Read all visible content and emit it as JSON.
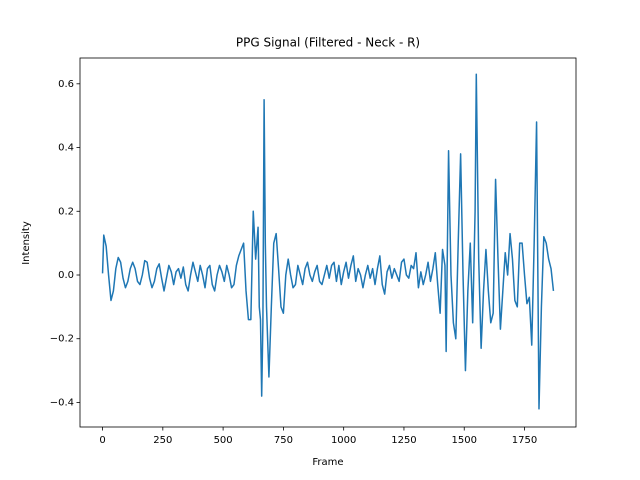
{
  "chart_data": {
    "type": "line",
    "title": "PPG Signal (Filtered - Neck - R)",
    "xlabel": "Frame",
    "ylabel": "Intensity",
    "color": "#1f77b4",
    "xlim": [
      -93.5,
      1963.5
    ],
    "ylim": [
      -0.477,
      0.681
    ],
    "xticks": [
      0,
      250,
      500,
      750,
      1000,
      1250,
      1500,
      1750
    ],
    "yticks": [
      {
        "value": -0.4,
        "label": "−0.4"
      },
      {
        "value": -0.2,
        "label": "−0.2"
      },
      {
        "value": 0.0,
        "label": "0.0"
      },
      0.2,
      0.4,
      0.6
    ],
    "x": [
      0,
      5,
      15,
      25,
      35,
      45,
      55,
      65,
      75,
      85,
      95,
      105,
      115,
      125,
      135,
      145,
      155,
      165,
      175,
      185,
      195,
      205,
      215,
      225,
      235,
      245,
      255,
      265,
      275,
      285,
      295,
      305,
      315,
      325,
      335,
      345,
      355,
      365,
      375,
      385,
      395,
      405,
      415,
      425,
      435,
      445,
      455,
      465,
      475,
      485,
      495,
      505,
      515,
      525,
      535,
      545,
      555,
      565,
      575,
      585,
      595,
      605,
      615,
      625,
      635,
      645,
      650,
      655,
      660,
      665,
      670,
      675,
      680,
      690,
      700,
      710,
      720,
      730,
      740,
      750,
      760,
      770,
      780,
      790,
      800,
      810,
      820,
      830,
      840,
      850,
      860,
      870,
      880,
      890,
      900,
      910,
      920,
      930,
      940,
      950,
      960,
      970,
      980,
      990,
      1000,
      1010,
      1020,
      1030,
      1040,
      1050,
      1060,
      1070,
      1080,
      1090,
      1100,
      1110,
      1120,
      1130,
      1140,
      1150,
      1160,
      1170,
      1180,
      1190,
      1200,
      1210,
      1220,
      1230,
      1240,
      1250,
      1260,
      1270,
      1280,
      1290,
      1300,
      1310,
      1320,
      1330,
      1340,
      1350,
      1360,
      1370,
      1380,
      1390,
      1400,
      1410,
      1420,
      1425,
      1435,
      1445,
      1455,
      1465,
      1475,
      1485,
      1495,
      1505,
      1515,
      1525,
      1535,
      1545,
      1550,
      1560,
      1570,
      1580,
      1590,
      1600,
      1610,
      1620,
      1630,
      1640,
      1650,
      1660,
      1670,
      1680,
      1690,
      1700,
      1710,
      1720,
      1730,
      1740,
      1750,
      1760,
      1770,
      1780,
      1790,
      1800,
      1810,
      1820,
      1830,
      1840,
      1850,
      1860,
      1870
    ],
    "values": [
      0.005,
      0.125,
      0.09,
      0.0,
      -0.08,
      -0.05,
      0.02,
      0.055,
      0.04,
      -0.01,
      -0.04,
      -0.02,
      0.02,
      0.04,
      0.02,
      -0.02,
      -0.03,
      0.0,
      0.045,
      0.04,
      -0.01,
      -0.04,
      -0.02,
      0.02,
      0.035,
      -0.01,
      -0.05,
      -0.01,
      0.03,
      0.01,
      -0.03,
      0.01,
      0.02,
      -0.01,
      0.025,
      -0.03,
      -0.05,
      0.0,
      0.04,
      0.01,
      -0.02,
      0.03,
      0.0,
      -0.04,
      0.02,
      0.03,
      -0.03,
      -0.05,
      0.0,
      0.03,
      0.01,
      -0.02,
      0.03,
      0.0,
      -0.04,
      -0.03,
      0.03,
      0.06,
      0.08,
      0.1,
      -0.05,
      -0.14,
      -0.14,
      0.2,
      0.05,
      0.15,
      -0.1,
      -0.14,
      -0.38,
      -0.15,
      0.55,
      0.1,
      -0.1,
      -0.32,
      -0.1,
      0.1,
      0.13,
      0.02,
      -0.1,
      -0.12,
      0.0,
      0.05,
      0.0,
      -0.04,
      -0.03,
      0.03,
      0.0,
      -0.03,
      0.02,
      0.04,
      0.0,
      -0.02,
      0.01,
      0.03,
      -0.02,
      -0.03,
      0.0,
      0.03,
      -0.01,
      0.03,
      0.04,
      -0.02,
      0.03,
      -0.03,
      0.01,
      0.04,
      -0.01,
      0.03,
      0.06,
      -0.02,
      0.02,
      0.0,
      -0.04,
      0.0,
      0.03,
      -0.01,
      0.02,
      -0.03,
      0.02,
      0.06,
      -0.03,
      -0.06,
      0.01,
      0.03,
      -0.01,
      0.02,
      0.0,
      -0.02,
      0.04,
      0.05,
      0.0,
      -0.01,
      0.03,
      0.02,
      0.07,
      -0.04,
      0.01,
      -0.03,
      0.0,
      0.04,
      -0.02,
      0.02,
      0.07,
      -0.03,
      -0.12,
      0.08,
      0.03,
      -0.24,
      0.39,
      0.0,
      -0.15,
      -0.2,
      0.1,
      0.38,
      0.0,
      -0.3,
      -0.05,
      0.1,
      -0.15,
      0.2,
      0.63,
      0.05,
      -0.23,
      -0.05,
      0.08,
      -0.05,
      -0.15,
      -0.12,
      0.3,
      0.05,
      -0.17,
      -0.05,
      0.07,
      0.0,
      0.13,
      0.05,
      -0.08,
      -0.1,
      0.1,
      0.1,
      0.0,
      -0.09,
      -0.07,
      -0.22,
      0.1,
      0.48,
      -0.42,
      -0.1,
      0.12,
      0.1,
      0.05,
      0.02,
      -0.05
    ]
  }
}
